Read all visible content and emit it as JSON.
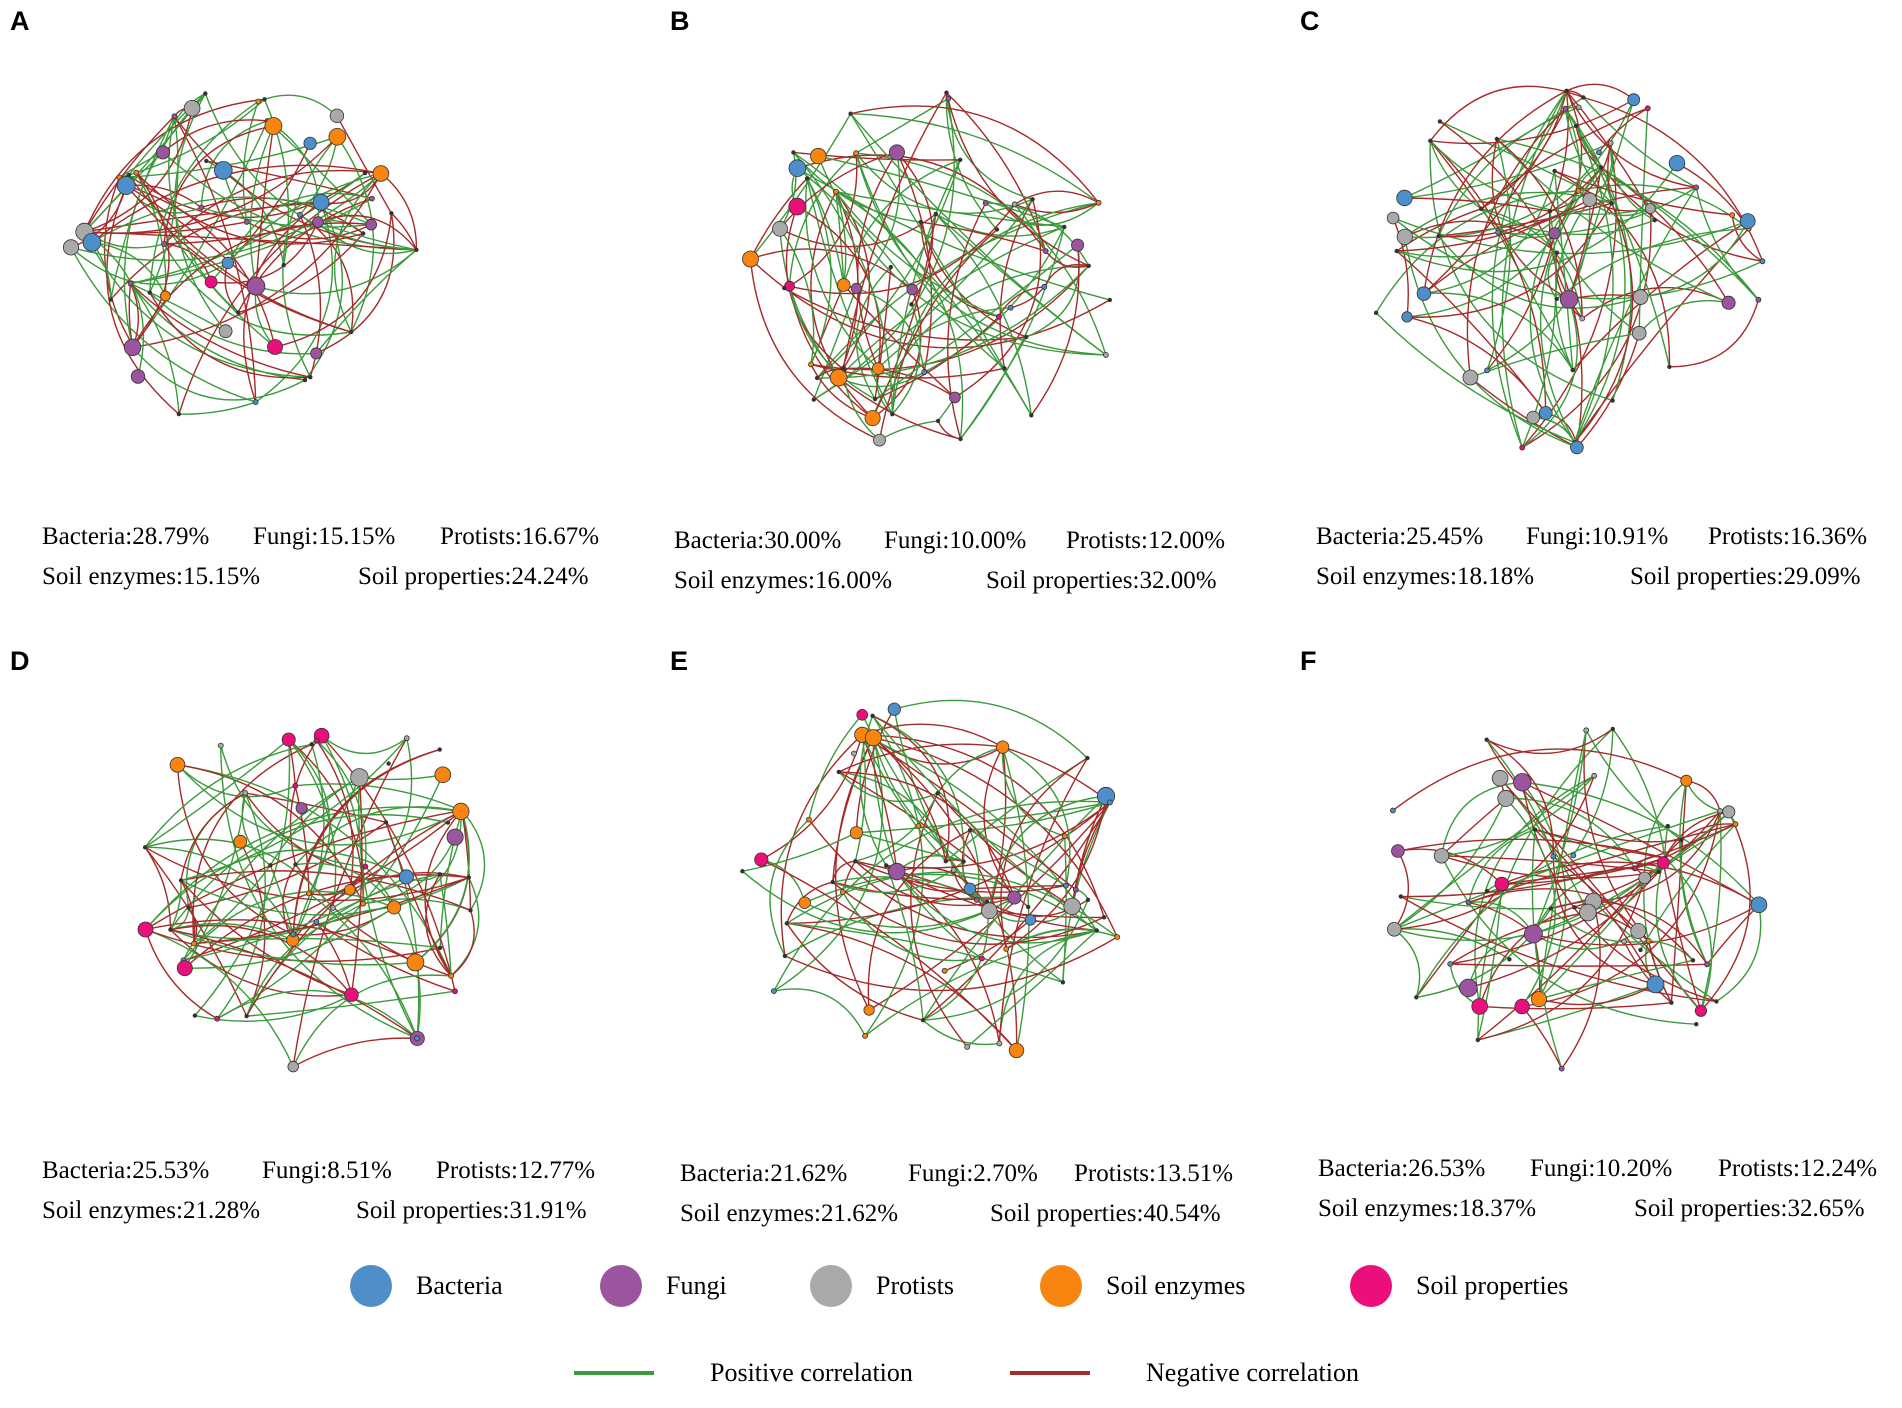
{
  "colors": {
    "bacteria": "#4e8fc9",
    "fungi": "#9b559e",
    "protists": "#a9a9a9",
    "soil_enzymes": "#f7850f",
    "soil_properties": "#eb0f7b",
    "positive": "#3c9a3c",
    "negative": "#a52a2a"
  },
  "panels": [
    {
      "letter": "A",
      "bacteria": "Bacteria:28.79%",
      "fungi": "Fungi:15.15%",
      "protists": "Protists:16.67%",
      "enzymes": "Soil enzymes:15.15%",
      "properties": "Soil properties:24.24%"
    },
    {
      "letter": "B",
      "bacteria": "Bacteria:30.00%",
      "fungi": "Fungi:10.00%",
      "protists": "Protists:12.00%",
      "enzymes": "Soil enzymes:16.00%",
      "properties": "Soil properties:32.00%"
    },
    {
      "letter": "C",
      "bacteria": "Bacteria:25.45%",
      "fungi": "Fungi:10.91%",
      "protists": "Protists:16.36%",
      "enzymes": "Soil enzymes:18.18%",
      "properties": "Soil properties:29.09%"
    },
    {
      "letter": "D",
      "bacteria": "Bacteria:25.53%",
      "fungi": "Fungi:8.51%",
      "protists": "Protists:12.77%",
      "enzymes": "Soil enzymes:21.28%",
      "properties": "Soil properties:31.91%"
    },
    {
      "letter": "E",
      "bacteria": "Bacteria:21.62%",
      "fungi": "Fungi:2.70%",
      "protists": "Protists:13.51%",
      "enzymes": "Soil enzymes:21.62%",
      "properties": "Soil properties:40.54%"
    },
    {
      "letter": "F",
      "bacteria": "Bacteria:26.53%",
      "fungi": "Fungi:10.20%",
      "protists": "Protists:12.24%",
      "enzymes": "Soil enzymes:18.37%",
      "properties": "Soil properties:32.65%"
    }
  ],
  "legend": {
    "bacteria": "Bacteria",
    "fungi": "Fungi",
    "protists": "Protists",
    "soil_enzymes": "Soil enzymes",
    "soil_properties": "Soil properties",
    "positive": "Positive correlation",
    "negative": "Negative correlation"
  }
}
